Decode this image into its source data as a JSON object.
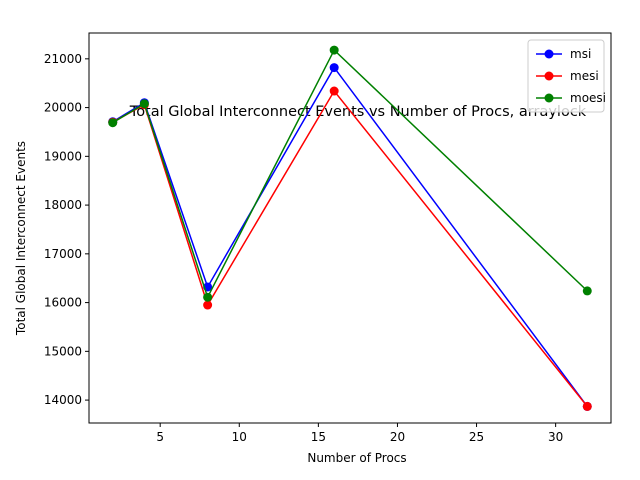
{
  "chart_data": {
    "type": "line",
    "title": "Total Global Interconnect Events vs Number of Procs, arraylock",
    "xlabel": "Number of Procs",
    "ylabel": "Total Global Interconnect Events",
    "x": [
      2,
      4,
      8,
      16,
      32
    ],
    "xlim": [
      0.5,
      33.5
    ],
    "ylim": [
      13530,
      21530
    ],
    "xticks": [
      5,
      10,
      15,
      20,
      25,
      30
    ],
    "yticks": [
      14000,
      15000,
      16000,
      17000,
      18000,
      19000,
      20000,
      21000
    ],
    "grid": false,
    "legend_position": "top-right",
    "series": [
      {
        "name": "msi",
        "color": "#0000ff",
        "values": [
          19710,
          20100,
          16320,
          20820,
          13870
        ]
      },
      {
        "name": "mesi",
        "color": "#ff0000",
        "values": [
          19700,
          20060,
          15950,
          20340,
          13870
        ]
      },
      {
        "name": "moesi",
        "color": "#008000",
        "values": [
          19690,
          20080,
          16110,
          21180,
          16240
        ]
      }
    ]
  }
}
